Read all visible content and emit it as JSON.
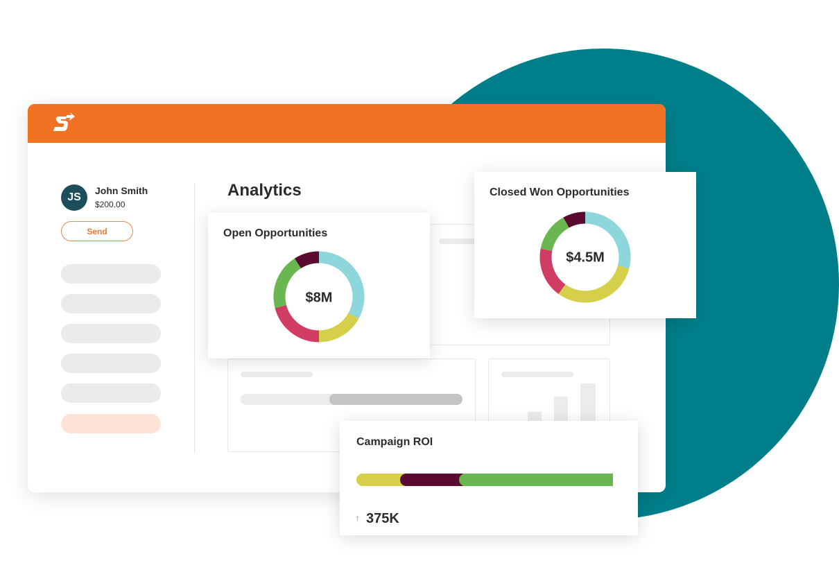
{
  "user": {
    "initials": "JS",
    "name": "John Smith",
    "amount": "$200.00",
    "send_label": "Send"
  },
  "main": {
    "title": "Analytics"
  },
  "open_opportunities": {
    "title": "Open Opportunities",
    "value": "$8M",
    "segments": [
      {
        "color": "#8dd6dc",
        "share": 0.33
      },
      {
        "color": "#d6cf4a",
        "share": 0.17
      },
      {
        "color": "#d13c64",
        "share": 0.21
      },
      {
        "color": "#6ab650",
        "share": 0.2
      },
      {
        "color": "#5a0a2e",
        "share": 0.09
      }
    ]
  },
  "closed_won": {
    "title": "Closed Won Opportunities",
    "value": "$4.5M",
    "segments": [
      {
        "color": "#8dd6dc",
        "share": 0.29
      },
      {
        "color": "#d6cf4a",
        "share": 0.31
      },
      {
        "color": "#d13c64",
        "share": 0.18
      },
      {
        "color": "#6ab650",
        "share": 0.14
      },
      {
        "color": "#5a0a2e",
        "share": 0.08
      }
    ]
  },
  "campaign_roi": {
    "title": "Campaign ROI",
    "value": "375K",
    "trend_icon": "arrow-up-icon",
    "segments": [
      {
        "color": "#d6cf4a",
        "share": 0.18
      },
      {
        "color": "#5a0a2e",
        "share": 0.24
      },
      {
        "color": "#6ab650",
        "share": 0.58
      }
    ]
  },
  "colors": {
    "brand": "#f07222",
    "teal": "#007f8b",
    "avatar": "#1d4e5c"
  }
}
